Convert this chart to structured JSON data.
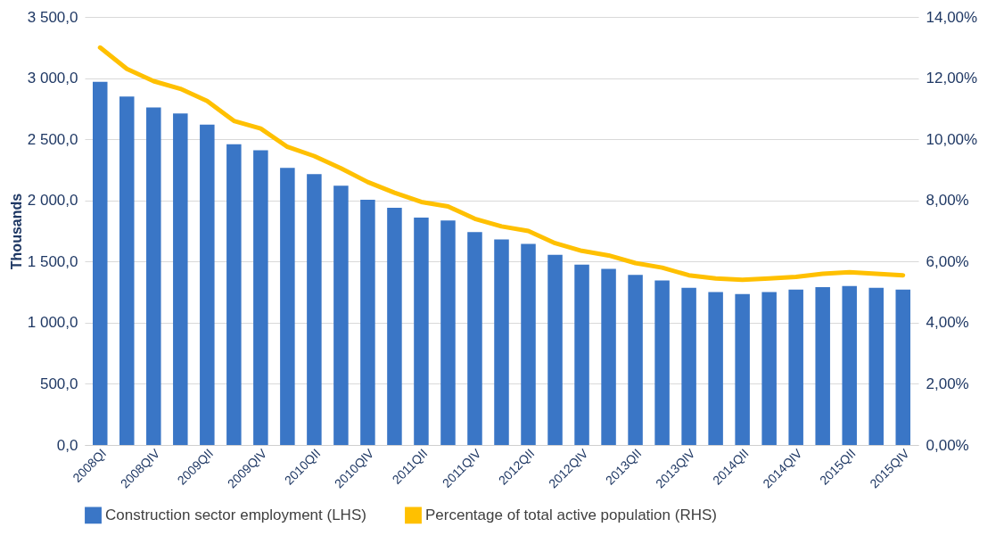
{
  "chart_data": {
    "type": "bar",
    "ylabel": "Thousands",
    "categories": [
      "2008QI",
      null,
      "2008QIV",
      null,
      "2009QII",
      null,
      "2009QIV",
      null,
      "2010QII",
      null,
      "2010QIV",
      null,
      "2011QII",
      null,
      "2011QIV",
      null,
      "2012QII",
      null,
      "2012QIV",
      null,
      "2013QII",
      null,
      "2013QIV",
      null,
      "2014QII",
      null,
      "2014QIV",
      null,
      "2015QII",
      null,
      "2015QIV"
    ],
    "series": [
      {
        "name": "Construction sector employment (LHS)",
        "color": "#3a76c6",
        "values": [
          2970,
          2850,
          2760,
          2710,
          2620,
          2460,
          2410,
          2265,
          2215,
          2120,
          2005,
          1940,
          1860,
          1835,
          1740,
          1680,
          1645,
          1555,
          1475,
          1440,
          1390,
          1345,
          1285,
          1250,
          1235,
          1250,
          1270,
          1290,
          1300,
          1285,
          1270
        ]
      },
      {
        "name": "Percentage of total active population (RHS)",
        "type": "line",
        "axis": "y2",
        "color": "#ffc000",
        "values": [
          13.0,
          12.3,
          11.9,
          11.65,
          11.25,
          10.6,
          10.35,
          9.75,
          9.45,
          9.05,
          8.6,
          8.25,
          7.95,
          7.8,
          7.4,
          7.15,
          7.0,
          6.6,
          6.35,
          6.2,
          5.95,
          5.8,
          5.55,
          5.45,
          5.4,
          5.45,
          5.5,
          5.6,
          5.65,
          5.6,
          5.55
        ]
      }
    ],
    "ylim": [
      0,
      3500
    ],
    "yticks": [
      {
        "value": 0,
        "label": "0,0"
      },
      {
        "value": 500,
        "label": "500,0"
      },
      {
        "value": 1000,
        "label": "1 000,0"
      },
      {
        "value": 1500,
        "label": "1 500,0"
      },
      {
        "value": 2000,
        "label": "2 000,0"
      },
      {
        "value": 2500,
        "label": "2 500,0"
      },
      {
        "value": 3000,
        "label": "3 000,0"
      },
      {
        "value": 3500,
        "label": "3 500,0"
      }
    ],
    "y2lim": [
      0,
      14
    ],
    "y2ticks": [
      {
        "value": 0,
        "label": "0,00%"
      },
      {
        "value": 2,
        "label": "2,00%"
      },
      {
        "value": 4,
        "label": "4,00%"
      },
      {
        "value": 6,
        "label": "6,00%"
      },
      {
        "value": 8,
        "label": "8,00%"
      },
      {
        "value": 10,
        "label": "10,00%"
      },
      {
        "value": 12,
        "label": "12,00%"
      },
      {
        "value": 14,
        "label": "14,00%"
      }
    ],
    "grid": "y",
    "legend": "bottom",
    "line_style": "solid",
    "marker": "none"
  }
}
